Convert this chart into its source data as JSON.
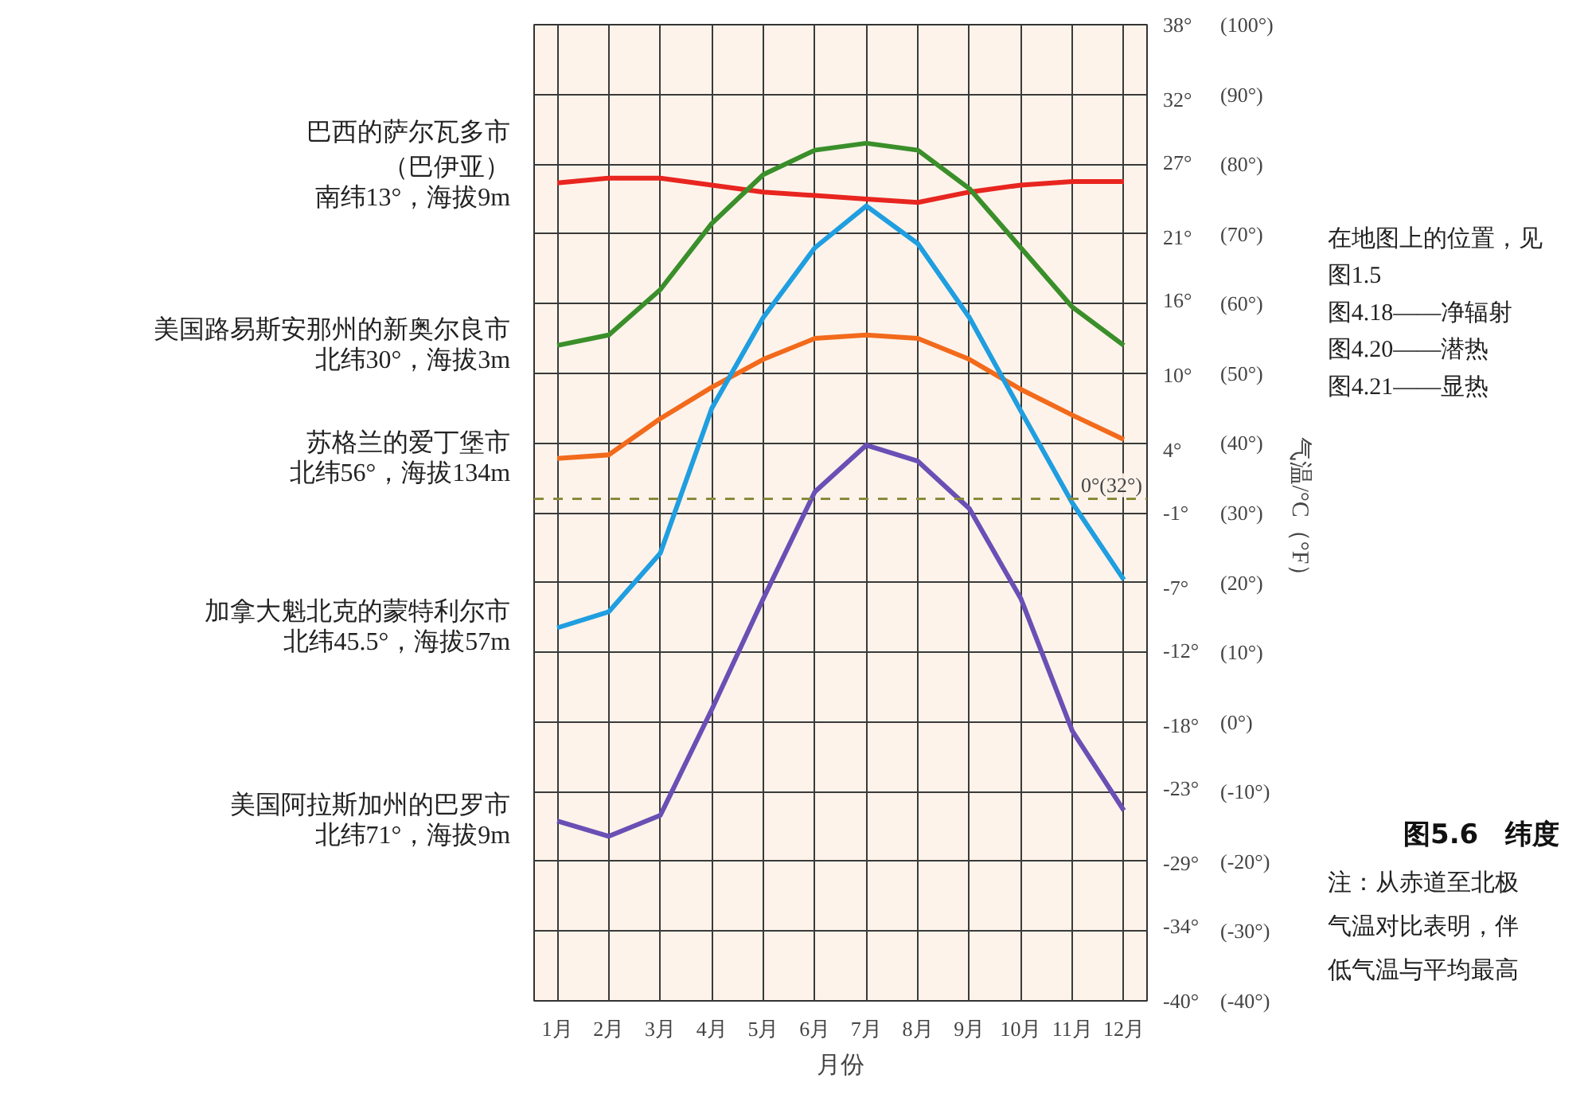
{
  "chart_data": {
    "type": "line",
    "title": "图5.6　纬度",
    "xlabel": "月份",
    "ylabel": "气温/°C（°F）",
    "categories": [
      "1月",
      "2月",
      "3月",
      "4月",
      "5月",
      "6月",
      "7月",
      "8月",
      "9月",
      "10月",
      "11月",
      "12月"
    ],
    "series": [
      {
        "name": "巴西的萨尔瓦多市（巴伊亚）",
        "color": "#e8251f",
        "values": [
          77.3,
          78,
          78,
          77,
          76,
          75.5,
          75,
          74.5,
          76,
          77,
          77.5,
          77.5
        ]
      },
      {
        "name": "美国路易斯安那州的新奥尔良市",
        "color": "#3a8f2a",
        "values": [
          54,
          55.5,
          62,
          71.5,
          78.5,
          82,
          83,
          82,
          76.5,
          68,
          59.5,
          54
        ]
      },
      {
        "name": "苏格兰的爱丁堡市",
        "color": "#f26a1b",
        "values": [
          37.8,
          38.3,
          43.5,
          48,
          52,
          55,
          55.5,
          55,
          52,
          47.7,
          44,
          40.5
        ]
      },
      {
        "name": "加拿大魁北克的蒙特利尔市",
        "color": "#1f9ee0",
        "values": [
          13.5,
          15.8,
          24.2,
          45,
          58,
          68,
          74,
          68.6,
          58,
          44.6,
          31.4,
          20.4
        ]
      },
      {
        "name": "美国阿拉斯加州的巴罗市",
        "color": "#6a4fb5",
        "values": [
          -14.2,
          -16.4,
          -13.4,
          1.8,
          17.7,
          33,
          39.7,
          37.4,
          30.6,
          17.7,
          -1.3,
          -12.7
        ]
      }
    ],
    "ylim": [
      -40,
      100
    ],
    "yticks": [
      {
        "value": 100,
        "label": "(100°)"
      },
      {
        "value": 90,
        "label": "(90°)"
      },
      {
        "value": 80,
        "label": "(80°)"
      },
      {
        "value": 70,
        "label": "(70°)"
      },
      {
        "value": 60,
        "label": "(60°)"
      },
      {
        "value": 50,
        "label": "(50°)"
      },
      {
        "value": 40,
        "label": "(40°)"
      },
      {
        "value": 30,
        "label": "(30°)"
      },
      {
        "value": 20,
        "label": "(20°)"
      },
      {
        "value": 10,
        "label": "(10°)"
      },
      {
        "value": 0,
        "label": "(0°)"
      },
      {
        "value": -10,
        "label": "(-10°)"
      },
      {
        "value": -20,
        "label": "(-20°)"
      },
      {
        "value": -30,
        "label": "(-30°)"
      },
      {
        "value": -40,
        "label": "(-40°)"
      }
    ],
    "y2lim": [
      -40,
      38
    ],
    "y2ticks": [
      {
        "value": 38,
        "label": "38°"
      },
      {
        "value": 32,
        "label": "32°"
      },
      {
        "value": 27,
        "label": "27°"
      },
      {
        "value": 21,
        "label": "21°"
      },
      {
        "value": 16,
        "label": "16°"
      },
      {
        "value": 10,
        "label": "10°"
      },
      {
        "value": 4,
        "label": "4°"
      },
      {
        "value": -1,
        "label": "-1°"
      },
      {
        "value": -7,
        "label": "-7°"
      },
      {
        "value": -12,
        "label": "-12°"
      },
      {
        "value": -18,
        "label": "-18°"
      },
      {
        "value": -23,
        "label": "-23°"
      },
      {
        "value": -29,
        "label": "-29°"
      },
      {
        "value": -34,
        "label": "-34°"
      },
      {
        "value": -40,
        "label": "-40°"
      }
    ],
    "ref_lines": [
      {
        "axis": "y",
        "value": 32,
        "label": "0°(32°)",
        "color": "#8a8a3a",
        "line_style": "dashed"
      }
    ],
    "grid": true,
    "line_style": "solid",
    "annotations": [
      {
        "text": "南纬13°，海拔9m",
        "x": "1月",
        "y": 77.3
      },
      {
        "text": "北纬30°，海拔3m",
        "x": "1月",
        "y": 54
      },
      {
        "text": "北纬56°，海拔134m",
        "x": "1月",
        "y": 37.8
      },
      {
        "text": "北纬45.5°，海拔57m",
        "x": "1月",
        "y": 13.5
      },
      {
        "text": "北纬71°，海拔9m",
        "x": "1月",
        "y": -14.2
      },
      "在地图上的位置，见",
      "图1.5",
      "图4.18——净辐射",
      "图4.20——潜热",
      "图4.21——显热",
      "注：从赤道至北极",
      "气温对比表明，伴",
      "低气温与平均最高"
    ]
  }
}
